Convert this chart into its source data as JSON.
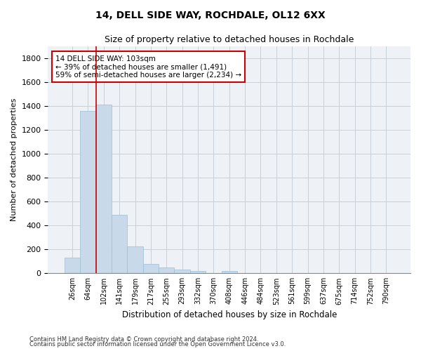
{
  "title": "14, DELL SIDE WAY, ROCHDALE, OL12 6XX",
  "subtitle": "Size of property relative to detached houses in Rochdale",
  "xlabel": "Distribution of detached houses by size in Rochdale",
  "ylabel": "Number of detached properties",
  "bar_color": "#c8d9ea",
  "bar_edge_color": "#9bbdd4",
  "grid_color": "#c8d0d8",
  "bg_color": "#eef2f6",
  "red_line_index": 2,
  "annotation_line1": "14 DELL SIDE WAY: 103sqm",
  "annotation_line2": "← 39% of detached houses are smaller (1,491)",
  "annotation_line3": "59% of semi-detached houses are larger (2,234) →",
  "annotation_box_color": "#cc0000",
  "categories": [
    "26sqm",
    "64sqm",
    "102sqm",
    "141sqm",
    "179sqm",
    "217sqm",
    "255sqm",
    "293sqm",
    "332sqm",
    "370sqm",
    "408sqm",
    "446sqm",
    "484sqm",
    "523sqm",
    "561sqm",
    "599sqm",
    "637sqm",
    "675sqm",
    "714sqm",
    "752sqm",
    "790sqm"
  ],
  "values": [
    130,
    1355,
    1410,
    490,
    225,
    80,
    50,
    30,
    20,
    0,
    20,
    0,
    0,
    0,
    0,
    0,
    0,
    0,
    0,
    0,
    0
  ],
  "ylim": [
    0,
    1900
  ],
  "yticks": [
    0,
    200,
    400,
    600,
    800,
    1000,
    1200,
    1400,
    1600,
    1800
  ],
  "footnote1": "Contains HM Land Registry data © Crown copyright and database right 2024.",
  "footnote2": "Contains public sector information licensed under the Open Government Licence v3.0."
}
